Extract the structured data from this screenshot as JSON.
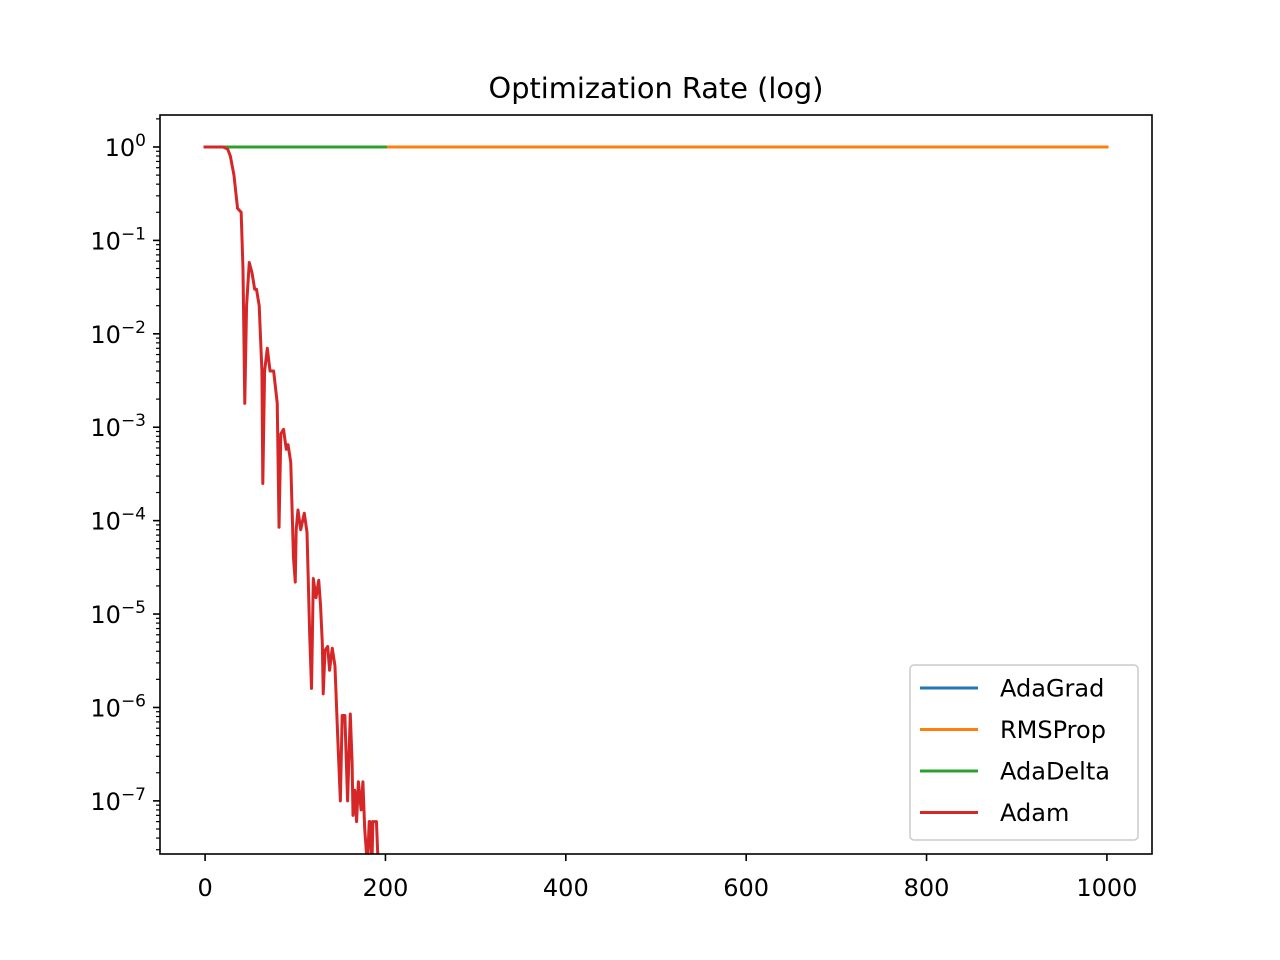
{
  "chart_data": {
    "type": "line",
    "title": "Optimization Rate (log)",
    "xlabel": "",
    "ylabel": "",
    "xlim": [
      -50,
      1050
    ],
    "ylim": [
      2.7e-08,
      2.2
    ],
    "yscale": "log",
    "grid": false,
    "legend_position": "lower right",
    "x_ticks": [
      {
        "value": 0,
        "label": "0"
      },
      {
        "value": 200,
        "label": "200"
      },
      {
        "value": 400,
        "label": "400"
      },
      {
        "value": 600,
        "label": "600"
      },
      {
        "value": 800,
        "label": "800"
      },
      {
        "value": 1000,
        "label": "1000"
      }
    ],
    "y_ticks": [
      {
        "exp": 0,
        "base": "10",
        "sup": "0"
      },
      {
        "exp": -1,
        "base": "10",
        "sup": "−1"
      },
      {
        "exp": -2,
        "base": "10",
        "sup": "−2"
      },
      {
        "exp": -3,
        "base": "10",
        "sup": "−3"
      },
      {
        "exp": -4,
        "base": "10",
        "sup": "−4"
      },
      {
        "exp": -5,
        "base": "10",
        "sup": "−5"
      },
      {
        "exp": -6,
        "base": "10",
        "sup": "−6"
      },
      {
        "exp": -7,
        "base": "10",
        "sup": "−7"
      }
    ],
    "series": [
      {
        "name": "AdaGrad",
        "color": "#1f77b4",
        "x": [
          0,
          1000
        ],
        "y": [
          1,
          1
        ]
      },
      {
        "name": "RMSProp",
        "color": "#ff7f0e",
        "x": [
          0,
          1000
        ],
        "y": [
          1,
          1
        ]
      },
      {
        "name": "AdaDelta",
        "color": "#2ca02c",
        "x": [
          0,
          200
        ],
        "y": [
          1,
          1
        ]
      },
      {
        "name": "Adam",
        "color": "#d62728",
        "x": [
          0,
          20,
          25,
          28,
          32,
          36,
          40,
          42,
          43,
          44,
          46,
          49,
          52,
          55,
          57,
          60,
          63,
          64,
          66,
          69,
          72,
          76,
          80,
          82,
          84,
          87,
          90,
          92,
          95,
          98,
          100,
          101,
          103,
          106,
          110,
          113,
          116,
          118,
          119,
          120,
          123,
          126,
          128,
          130,
          131,
          133,
          136,
          138,
          141,
          144,
          147,
          150,
          152,
          155,
          158,
          161,
          163,
          164,
          166,
          168,
          170,
          173,
          175,
          177,
          180,
          182,
          183,
          185,
          186,
          190,
          192
        ],
        "y": [
          1,
          1,
          0.95,
          0.8,
          0.5,
          0.22,
          0.2,
          0.05,
          0.01,
          0.0018,
          0.02,
          0.058,
          0.045,
          0.03,
          0.03,
          0.02,
          0.004,
          0.00025,
          0.004,
          0.007,
          0.004,
          0.004,
          0.0018,
          8.5e-05,
          0.00085,
          0.00095,
          0.00058,
          0.00065,
          0.00042,
          4e-05,
          2.2e-05,
          8e-05,
          0.00013,
          8e-05,
          0.00012,
          7.5e-05,
          6e-06,
          1.6e-06,
          6e-06,
          2.4e-05,
          1.5e-05,
          2.3e-05,
          1.25e-05,
          4.8e-06,
          1.4e-06,
          4.1e-06,
          4.5e-06,
          2.5e-06,
          4.3e-06,
          2.8e-06,
          5e-07,
          1e-07,
          8.2e-07,
          8.2e-07,
          1e-07,
          8.5e-07,
          2.6e-07,
          7e-08,
          1.3e-07,
          6e-08,
          1.6e-07,
          8e-08,
          1.6e-07,
          5e-08,
          2e-08,
          6e-08,
          6e-08,
          2e-08,
          6e-08,
          6e-08,
          2e-08
        ]
      }
    ]
  }
}
